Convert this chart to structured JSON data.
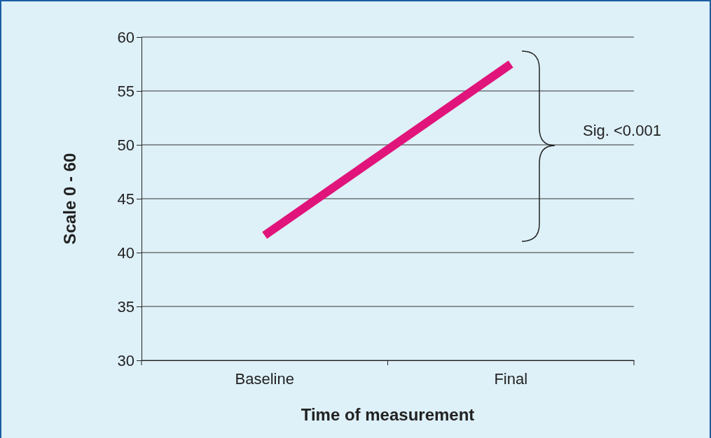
{
  "chart_data": {
    "type": "line",
    "xlabel": "Time of measurement",
    "ylabel": "Scale 0 - 60",
    "categories": [
      "Baseline",
      "Final"
    ],
    "series": [
      {
        "color": "#e0147a",
        "values": [
          41.6,
          57.5
        ]
      }
    ],
    "ylim": [
      30,
      60
    ],
    "yticks": [
      30,
      35,
      40,
      45,
      50,
      55,
      60
    ],
    "grid": "y",
    "marker": "none",
    "line_style": "solid",
    "annotations": [
      "Sig. <0.001"
    ]
  }
}
